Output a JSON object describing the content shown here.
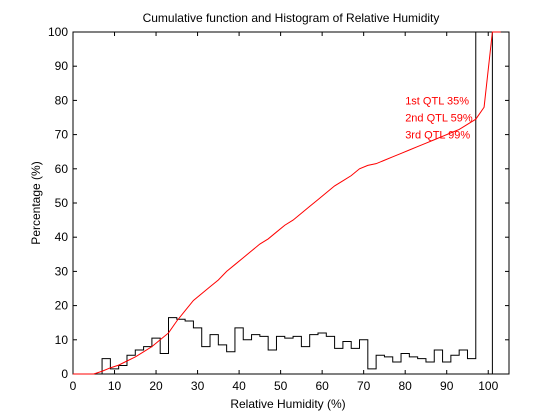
{
  "chart_data": {
    "type": "line",
    "title": "Cumulative function and Histogram of Relative Humidity",
    "xlabel": "Relative Humidity (%)",
    "ylabel": "Percentage (%)",
    "xlim": [
      0,
      105
    ],
    "ylim": [
      0,
      100
    ],
    "xticks": [
      0,
      10,
      20,
      30,
      40,
      50,
      60,
      70,
      80,
      90,
      100
    ],
    "yticks": [
      0,
      10,
      20,
      30,
      40,
      50,
      60,
      70,
      80,
      90,
      100
    ],
    "grid": false,
    "colors": {
      "cumulative": "#ff0000",
      "histogram": "#000000",
      "annotations": "#ff0000"
    },
    "series": [
      {
        "kind": "cumulative-line",
        "x": [
          0,
          5,
          7,
          9,
          11,
          13,
          15,
          17,
          19,
          21,
          23,
          25,
          27,
          29,
          31,
          33,
          35,
          37,
          39,
          41,
          43,
          45,
          47,
          49,
          51,
          53,
          55,
          57,
          59,
          61,
          63,
          65,
          67,
          69,
          71,
          73,
          75,
          77,
          79,
          81,
          83,
          85,
          87,
          89,
          91,
          93,
          95,
          97,
          99,
          101,
          103
        ],
        "y": [
          0,
          0,
          0.8,
          1.8,
          2.6,
          3.8,
          5.0,
          6.5,
          8.0,
          10.0,
          12.0,
          15.5,
          18.5,
          21.5,
          23.5,
          25.5,
          27.5,
          30.0,
          32.0,
          34.0,
          36.0,
          38.0,
          39.5,
          41.5,
          43.5,
          45.0,
          47.0,
          49.0,
          51.0,
          53.0,
          55.0,
          56.5,
          58.0,
          60.0,
          61.0,
          61.5,
          62.5,
          63.5,
          64.5,
          65.5,
          66.5,
          67.5,
          68.5,
          69.5,
          70.5,
          71.5,
          73.0,
          74.5,
          78.0,
          100,
          100
        ]
      },
      {
        "kind": "histogram-step",
        "bin_width": 2,
        "bin_starts": [
          7,
          9,
          11,
          13,
          15,
          17,
          19,
          21,
          23,
          25,
          27,
          29,
          31,
          33,
          35,
          37,
          39,
          41,
          43,
          45,
          47,
          49,
          51,
          53,
          55,
          57,
          59,
          61,
          63,
          65,
          67,
          69,
          71,
          73,
          75,
          77,
          79,
          81,
          83,
          85,
          87,
          89,
          91,
          93,
          95,
          97,
          99,
          101
        ],
        "values": [
          4.5,
          1.5,
          2.5,
          5.5,
          7.0,
          8.0,
          10.5,
          6.0,
          16.5,
          16.0,
          15.5,
          13.5,
          8.0,
          11.5,
          8.5,
          6.5,
          13.5,
          10.0,
          11.5,
          11.0,
          7.0,
          11.0,
          10.5,
          11.0,
          8.0,
          11.5,
          12.0,
          11.0,
          7.5,
          9.5,
          7.5,
          10.0,
          1.5,
          5.5,
          5.0,
          3.5,
          6.0,
          5.0,
          4.5,
          3.5,
          7.0,
          3.5,
          5.5,
          7.0,
          4.5,
          100,
          100,
          0
        ]
      }
    ],
    "annotations": [
      {
        "text": "1st QTL  35%",
        "x": 80,
        "y": 80
      },
      {
        "text": "2nd QTL  59%",
        "x": 80,
        "y": 75
      },
      {
        "text": "3rd QTL  99%",
        "x": 80,
        "y": 70
      }
    ]
  }
}
